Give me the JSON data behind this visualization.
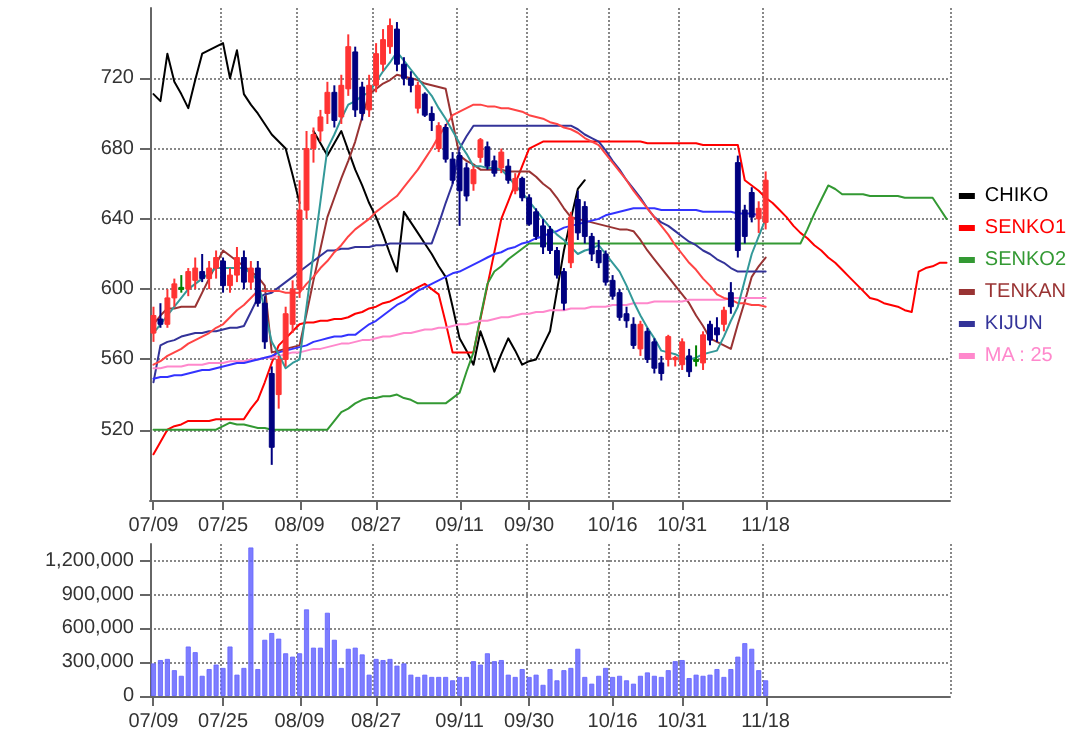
{
  "chart_data": [
    {
      "type": "candlestick",
      "categories": [
        "07/09",
        null,
        null,
        null,
        null,
        null,
        null,
        null,
        null,
        null,
        "07/25",
        null,
        null,
        null,
        null,
        null,
        null,
        null,
        null,
        null,
        null,
        "08/09",
        null,
        null,
        null,
        null,
        null,
        null,
        null,
        null,
        null,
        null,
        "08/27",
        null,
        null,
        null,
        null,
        null,
        null,
        null,
        null,
        null,
        null,
        null,
        "09/11",
        null,
        null,
        null,
        null,
        null,
        null,
        null,
        null,
        null,
        "09/30",
        null,
        null,
        null,
        null,
        null,
        null,
        null,
        null,
        null,
        null,
        null,
        "10/16",
        null,
        null,
        null,
        null,
        null,
        null,
        null,
        null,
        null,
        "10/31",
        null,
        null,
        null,
        null,
        null,
        null,
        null,
        null,
        null,
        null,
        null,
        "11/18",
        null,
        null,
        null,
        null,
        null,
        null,
        null,
        null,
        null,
        null,
        null,
        null,
        null,
        null,
        null,
        null,
        null,
        null,
        null,
        null,
        null,
        null,
        null,
        null,
        null,
        null
      ],
      "ohlc": [
        [
          575,
          590,
          570,
          585
        ],
        [
          583,
          592,
          578,
          580
        ],
        [
          580,
          600,
          578,
          595
        ],
        [
          595,
          606,
          590,
          603
        ],
        [
          601,
          608,
          598,
          601
        ],
        [
          600,
          612,
          596,
          610
        ],
        [
          605,
          618,
          600,
          612
        ],
        [
          610,
          620,
          604,
          606
        ],
        [
          606,
          616,
          600,
          612
        ],
        [
          612,
          622,
          606,
          618
        ],
        [
          616,
          618,
          598,
          602
        ],
        [
          602,
          612,
          598,
          608
        ],
        [
          608,
          624,
          604,
          618
        ],
        [
          618,
          622,
          600,
          604
        ],
        [
          604,
          616,
          600,
          612
        ],
        [
          612,
          616,
          590,
          592
        ],
        [
          592,
          596,
          566,
          570
        ],
        [
          552,
          556,
          500,
          510
        ],
        [
          540,
          562,
          532,
          560
        ],
        [
          560,
          590,
          556,
          586
        ],
        [
          580,
          605,
          575,
          600
        ],
        [
          600,
          662,
          595,
          645
        ],
        [
          645,
          690,
          640,
          680
        ],
        [
          680,
          692,
          672,
          688
        ],
        [
          690,
          702,
          684,
          698
        ],
        [
          700,
          718,
          694,
          712
        ],
        [
          712,
          716,
          692,
          696
        ],
        [
          698,
          722,
          694,
          716
        ],
        [
          714,
          745,
          710,
          738
        ],
        [
          735,
          738,
          698,
          702
        ],
        [
          715,
          718,
          696,
          700
        ],
        [
          702,
          722,
          698,
          716
        ],
        [
          716,
          740,
          712,
          734
        ],
        [
          728,
          748,
          724,
          742
        ],
        [
          738,
          754,
          734,
          750
        ],
        [
          748,
          752,
          724,
          728
        ],
        [
          728,
          732,
          716,
          720
        ],
        [
          720,
          724,
          712,
          716
        ],
        [
          703,
          718,
          700,
          716
        ],
        [
          711,
          712,
          698,
          699
        ],
        [
          700,
          704,
          690,
          696
        ],
        [
          680,
          695,
          678,
          693
        ],
        [
          692,
          694,
          672,
          674
        ],
        [
          674,
          678,
          660,
          662
        ],
        [
          676,
          678,
          636,
          656
        ],
        [
          669,
          672,
          650,
          653
        ],
        [
          660,
          670,
          656,
          668
        ],
        [
          675,
          686,
          672,
          685
        ],
        [
          681,
          684,
          668,
          670
        ],
        [
          673,
          676,
          664,
          666
        ],
        [
          669,
          680,
          666,
          678
        ],
        [
          670,
          674,
          660,
          662
        ],
        [
          656,
          666,
          654,
          663
        ],
        [
          663,
          664,
          650,
          652
        ],
        [
          652,
          654,
          636,
          637
        ],
        [
          644,
          646,
          628,
          630
        ],
        [
          636,
          640,
          620,
          624
        ],
        [
          634,
          636,
          620,
          622
        ],
        [
          622,
          624,
          606,
          608
        ],
        [
          610,
          612,
          588,
          592
        ],
        [
          615,
          644,
          612,
          641
        ],
        [
          651,
          656,
          628,
          632
        ],
        [
          647,
          650,
          626,
          630
        ],
        [
          630,
          632,
          616,
          620
        ],
        [
          622,
          628,
          612,
          615
        ],
        [
          620,
          622,
          602,
          604
        ],
        [
          605,
          608,
          594,
          596
        ],
        [
          598,
          600,
          582,
          584
        ],
        [
          586,
          590,
          578,
          582
        ],
        [
          580,
          584,
          566,
          568
        ],
        [
          566,
          582,
          562,
          580
        ],
        [
          576,
          578,
          558,
          560
        ],
        [
          570,
          572,
          552,
          555
        ],
        [
          558,
          562,
          548,
          552
        ],
        [
          560,
          574,
          556,
          573
        ],
        [
          560,
          562,
          556,
          561
        ],
        [
          557,
          572,
          554,
          570
        ],
        [
          562,
          566,
          550,
          553
        ],
        [
          560,
          568,
          556,
          560
        ],
        [
          558,
          576,
          554,
          574
        ],
        [
          580,
          582,
          568,
          571
        ],
        [
          578,
          584,
          570,
          574
        ],
        [
          580,
          590,
          576,
          588
        ],
        [
          598,
          604,
          586,
          590
        ],
        [
          672,
          676,
          618,
          622
        ],
        [
          645,
          648,
          626,
          630
        ],
        [
          655,
          658,
          638,
          641
        ],
        [
          640,
          650,
          632,
          646
        ],
        [
          638,
          667,
          634,
          662
        ],
        null,
        null,
        null,
        null,
        null,
        null,
        null,
        null,
        null,
        null,
        null,
        null,
        null,
        null,
        null,
        null,
        null,
        null,
        null,
        null,
        null,
        null,
        null,
        null,
        null,
        null
      ],
      "colors": [
        "#ff3333",
        "#000080",
        "#ff3333",
        "#ff3333",
        "#008000",
        "#ff3333",
        "#ff3333",
        "#000080",
        "#ff3333",
        "#ff3333",
        "#000080",
        "#ff3333",
        "#ff3333",
        "#000080",
        "#ff3333",
        "#000080",
        "#000080",
        "#000080",
        "#ff3333",
        "#ff3333",
        "#ff3333",
        "#ff3333",
        "#ff3333",
        "#ff3333",
        "#ff3333",
        "#ff3333",
        "#000080",
        "#ff3333",
        "#ff3333",
        "#000080",
        "#000080",
        "#ff3333",
        "#ff3333",
        "#ff3333",
        "#ff3333",
        "#000080",
        "#000080",
        "#000080",
        "#ff3333",
        "#000080",
        "#000080",
        "#ff3333",
        "#000080",
        "#000080",
        "#000080",
        "#000080",
        "#ff3333",
        "#ff3333",
        "#000080",
        "#000080",
        "#ff3333",
        "#000080",
        "#ff3333",
        "#000080",
        "#000080",
        "#000080",
        "#000080",
        "#000080",
        "#000080",
        "#000080",
        "#ff3333",
        "#000080",
        "#000080",
        "#000080",
        "#000080",
        "#000080",
        "#000080",
        "#000080",
        "#000080",
        "#000080",
        "#ff3333",
        "#000080",
        "#000080",
        "#000080",
        "#ff3333",
        "#ff3333",
        "#ff3333",
        "#000080",
        "#008000",
        "#ff3333",
        "#000080",
        "#000080",
        "#ff3333",
        "#000080",
        "#000080",
        "#000080",
        "#000080",
        "#ff3333",
        "#ff3333",
        null,
        null,
        null,
        null,
        null,
        null,
        null,
        null,
        null,
        null,
        null,
        null,
        null,
        null,
        null,
        null,
        null,
        null,
        null,
        null,
        null,
        null,
        null,
        null,
        null,
        null
      ],
      "series": [
        {
          "type": "line",
          "name": "CHIKO",
          "color": "#000000",
          "values": [
            711,
            707,
            734,
            718,
            711,
            703,
            719,
            734,
            736,
            738,
            740,
            720,
            736,
            711,
            705,
            700,
            694,
            688,
            684,
            680,
            665,
            649,
            null,
            690,
            683,
            676,
            683,
            690,
            679,
            668,
            659,
            649,
            641,
            631,
            620,
            610,
            644,
            638,
            632,
            626,
            620,
            613,
            607,
            590,
            572,
            565,
            557,
            576,
            565,
            553,
            563,
            572,
            565,
            557,
            559,
            560,
            568,
            576,
            599,
            622,
            640,
            657,
            662,
            null,
            null,
            null,
            null,
            null,
            null,
            null,
            null,
            null,
            null,
            null,
            null,
            null,
            null,
            null,
            null,
            null,
            null,
            null,
            null,
            null,
            null,
            null,
            null,
            null,
            null,
            null,
            null,
            null,
            null,
            null,
            null,
            null,
            null,
            null,
            null,
            null,
            null,
            null,
            null,
            null,
            null,
            null,
            null,
            null,
            null,
            null,
            null,
            null,
            null,
            null,
            null
          ]
        },
        {
          "type": "line",
          "name": "SENKO1",
          "color": "#ff0000",
          "values": [
            506,
            513,
            520,
            522,
            523,
            525,
            525,
            525,
            525,
            526,
            526,
            526,
            526,
            526,
            532,
            537,
            547,
            558,
            568,
            572,
            576,
            580,
            581,
            581,
            582,
            582,
            583,
            583,
            584,
            586,
            587,
            589,
            590,
            592,
            593,
            595,
            597,
            599,
            601,
            603,
            600,
            597,
            581,
            564,
            564,
            564,
            564,
            583,
            602,
            621,
            640,
            650,
            660,
            670,
            680,
            682,
            684,
            684,
            684,
            684,
            684,
            684,
            684,
            684,
            684,
            684,
            684,
            684,
            684,
            684,
            684,
            683,
            683,
            683,
            683,
            683,
            683,
            683,
            683,
            682,
            682,
            682,
            682,
            682,
            682,
            662,
            659,
            656,
            652,
            649,
            645,
            641,
            636,
            632,
            629,
            625,
            622,
            618,
            615,
            611,
            607,
            603,
            599,
            595,
            594,
            592,
            591,
            590,
            588,
            587,
            610,
            612,
            613,
            615,
            615
          ]
        },
        {
          "type": "line",
          "name": "SENKO2",
          "color": "#339933",
          "values": [
            520,
            520,
            520,
            520,
            520,
            520,
            520,
            520,
            520,
            520,
            522,
            524,
            523,
            523,
            522,
            521,
            521,
            520,
            520,
            520,
            520,
            520,
            520,
            520,
            520,
            520,
            525,
            530,
            532,
            535,
            537,
            538,
            538,
            539,
            539,
            540,
            538,
            537,
            535,
            535,
            535,
            535,
            535,
            538,
            541,
            553,
            564,
            584,
            603,
            610,
            613,
            617,
            620,
            623,
            626,
            626,
            626,
            626,
            626,
            626,
            626,
            626,
            626,
            626,
            626,
            626,
            626,
            626,
            626,
            626,
            626,
            626,
            626,
            626,
            626,
            626,
            626,
            626,
            626,
            626,
            626,
            626,
            626,
            626,
            626,
            626,
            626,
            626,
            626,
            626,
            626,
            626,
            626,
            626,
            634,
            643,
            651,
            659,
            657,
            654,
            654,
            654,
            654,
            653,
            653,
            653,
            653,
            653,
            652,
            652,
            652,
            652,
            652,
            646,
            640
          ]
        },
        {
          "type": "line",
          "name": "TENKAN",
          "color": "#993333",
          "values": [
            580,
            585,
            589,
            589,
            590,
            590,
            590,
            598,
            606,
            614,
            622,
            619,
            616,
            613,
            610,
            607,
            602,
            564,
            565,
            566,
            567,
            568,
            586,
            605,
            623,
            641,
            652,
            663,
            673,
            684,
            698,
            711,
            714,
            717,
            719,
            722,
            721,
            720,
            719,
            717,
            716,
            715,
            714,
            695,
            676,
            673,
            671,
            668,
            668,
            668,
            668,
            667,
            667,
            667,
            667,
            664,
            660,
            657,
            652,
            646,
            641,
            640,
            639,
            638,
            637,
            636,
            635,
            634,
            634,
            633,
            628,
            622,
            617,
            612,
            607,
            602,
            597,
            592,
            585,
            579,
            572,
            570,
            568,
            566,
            580,
            593,
            607,
            613,
            618,
            null,
            null,
            null,
            null,
            null,
            null,
            null,
            null,
            null,
            null,
            null,
            null,
            null,
            null,
            null,
            null,
            null,
            null,
            null,
            null,
            null,
            null,
            null,
            null,
            null,
            null
          ]
        },
        {
          "type": "line",
          "name": "KIJUN",
          "color": "#333399",
          "values": [
            547,
            568,
            570,
            571,
            573,
            574,
            575,
            575,
            576,
            576,
            577,
            578,
            578,
            579,
            587,
            595,
            597,
            598,
            601,
            604,
            607,
            610,
            613,
            616,
            619,
            622,
            622,
            623,
            623,
            624,
            624,
            624,
            625,
            625,
            626,
            626,
            626,
            626,
            626,
            626,
            626,
            637,
            649,
            660,
            680,
            687,
            693,
            693,
            693,
            693,
            693,
            693,
            693,
            693,
            693,
            693,
            693,
            693,
            693,
            693,
            693,
            691,
            688,
            686,
            684,
            679,
            673,
            668,
            662,
            657,
            652,
            646,
            641,
            638,
            636,
            633,
            630,
            627,
            625,
            622,
            620,
            617,
            615,
            612,
            610,
            610,
            610,
            610,
            610,
            null,
            null,
            null,
            null,
            null,
            null,
            null,
            null,
            null,
            null,
            null,
            null,
            null,
            null,
            null,
            null,
            null,
            null,
            null,
            null,
            null,
            null,
            null,
            null,
            null,
            null
          ]
        },
        {
          "type": "line",
          "name": "MA : 25",
          "color": "#ff88cc",
          "values": [
            555,
            555,
            556,
            556,
            556,
            557,
            557,
            557,
            558,
            558,
            558,
            559,
            559,
            559,
            560,
            560,
            561,
            561,
            562,
            563,
            564,
            564,
            565,
            566,
            566,
            567,
            568,
            569,
            569,
            570,
            571,
            571,
            572,
            573,
            573,
            574,
            575,
            575,
            576,
            577,
            577,
            578,
            578,
            579,
            580,
            580,
            581,
            582,
            582,
            583,
            584,
            584,
            585,
            586,
            586,
            587,
            587,
            588,
            588,
            588,
            589,
            589,
            589,
            590,
            590,
            590,
            591,
            591,
            591,
            592,
            592,
            592,
            593,
            593,
            593,
            593,
            593,
            594,
            594,
            594,
            594,
            594,
            594,
            595,
            595,
            595,
            595,
            595,
            595,
            null,
            null,
            null,
            null,
            null,
            null,
            null,
            null,
            null,
            null,
            null,
            null,
            null,
            null,
            null,
            null,
            null,
            null,
            null,
            null,
            null,
            null,
            null,
            null,
            null,
            null
          ]
        },
        {
          "type": "line",
          "color": "#3333ff",
          "values": [
            549,
            550,
            550,
            551,
            551,
            552,
            553,
            554,
            554,
            555,
            556,
            557,
            558,
            558,
            559,
            560,
            561,
            562,
            564,
            565,
            566,
            567,
            568,
            570,
            571,
            572,
            573,
            573,
            574,
            574,
            577,
            580,
            582,
            585,
            588,
            591,
            593,
            596,
            599,
            601,
            603,
            605,
            607,
            609,
            610,
            612,
            614,
            616,
            618,
            620,
            621,
            623,
            624,
            626,
            627,
            629,
            630,
            632,
            633,
            635,
            636,
            637,
            638,
            639,
            640,
            642,
            643,
            644,
            645,
            646,
            646,
            646,
            646,
            645,
            645,
            645,
            645,
            645,
            645,
            644,
            644,
            644,
            644,
            644,
            643,
            643,
            643,
            642,
            null,
            null,
            null,
            null,
            null,
            null,
            null,
            null,
            null,
            null,
            null,
            null,
            null,
            null,
            null,
            null,
            null,
            null,
            null,
            null,
            null,
            null,
            null,
            null,
            null,
            null,
            null
          ]
        },
        {
          "type": "line",
          "color": "#ff4444",
          "values": [
            557,
            559,
            562,
            564,
            566,
            569,
            571,
            573,
            575,
            578,
            580,
            584,
            588,
            591,
            595,
            599,
            599,
            599,
            599,
            598,
            598,
            598,
            603,
            607,
            612,
            616,
            621,
            625,
            630,
            634,
            637,
            640,
            644,
            647,
            650,
            653,
            658,
            663,
            668,
            674,
            680,
            687,
            693,
            699,
            701,
            703,
            705,
            705,
            704,
            704,
            703,
            703,
            702,
            701,
            699,
            698,
            697,
            695,
            694,
            692,
            691,
            689,
            686,
            684,
            682,
            677,
            672,
            667,
            662,
            656,
            651,
            646,
            641,
            636,
            631,
            625,
            620,
            615,
            611,
            606,
            602,
            597,
            595,
            594,
            592,
            592,
            591,
            591,
            590,
            null,
            null,
            null,
            null,
            null,
            null,
            null,
            null,
            null,
            null,
            null,
            null,
            null,
            null,
            null,
            null,
            null,
            null,
            null,
            null,
            null,
            null,
            null,
            null,
            null,
            null
          ]
        },
        {
          "type": "line",
          "color": "#339999",
          "values": [
            575,
            580,
            585,
            590,
            595,
            600,
            603,
            606,
            609,
            612,
            612,
            612,
            612,
            612,
            609,
            605,
            588,
            570,
            563,
            555,
            558,
            560,
            590,
            620,
            650,
            680,
            688,
            697,
            705,
            707,
            710,
            712,
            718,
            724,
            729,
            735,
            730,
            725,
            720,
            715,
            710,
            703,
            697,
            690,
            683,
            677,
            670,
            670,
            669,
            669,
            668,
            664,
            659,
            655,
            650,
            645,
            640,
            635,
            631,
            628,
            624,
            620,
            622,
            623,
            625,
            620,
            615,
            610,
            602,
            593,
            585,
            578,
            572,
            565,
            564,
            563,
            561,
            560,
            561,
            563,
            564,
            565,
            573,
            582,
            590,
            605,
            620,
            630,
            640,
            null,
            null,
            null,
            null,
            null,
            null,
            null,
            null,
            null,
            null,
            null,
            null,
            null,
            null,
            null,
            null,
            null,
            null,
            null,
            null,
            null,
            null,
            null,
            null,
            null,
            null
          ]
        }
      ],
      "ylim": [
        480,
        760
      ],
      "yticks": [
        520,
        560,
        600,
        640,
        680,
        720
      ],
      "grid": true,
      "legend": "right"
    },
    {
      "type": "bar",
      "categories": [
        "07/09",
        null,
        null,
        null,
        null,
        null,
        null,
        null,
        null,
        null,
        "07/25",
        null,
        null,
        null,
        null,
        null,
        null,
        null,
        null,
        null,
        null,
        "08/09",
        null,
        null,
        null,
        null,
        null,
        null,
        null,
        null,
        null,
        null,
        "08/27",
        null,
        null,
        null,
        null,
        null,
        null,
        null,
        null,
        null,
        null,
        null,
        "09/11",
        null,
        null,
        null,
        null,
        null,
        null,
        null,
        null,
        null,
        "09/30",
        null,
        null,
        null,
        null,
        null,
        null,
        null,
        null,
        null,
        null,
        null,
        "10/16",
        null,
        null,
        null,
        null,
        null,
        null,
        null,
        null,
        null,
        "10/31",
        null,
        null,
        null,
        null,
        null,
        null,
        null,
        null,
        null,
        null,
        null,
        "11/18",
        null,
        null,
        null,
        null,
        null,
        null,
        null,
        null,
        null,
        null,
        null,
        null,
        null,
        null,
        null,
        null,
        null,
        null,
        null,
        null,
        null,
        null,
        null,
        null,
        null,
        null
      ],
      "values": [
        290000,
        320000,
        330000,
        230000,
        180000,
        440000,
        390000,
        180000,
        240000,
        280000,
        250000,
        440000,
        190000,
        250000,
        1320000,
        240000,
        500000,
        560000,
        510000,
        380000,
        350000,
        380000,
        770000,
        430000,
        430000,
        740000,
        500000,
        250000,
        420000,
        430000,
        370000,
        190000,
        330000,
        320000,
        330000,
        270000,
        290000,
        190000,
        170000,
        190000,
        170000,
        170000,
        170000,
        140000,
        170000,
        170000,
        310000,
        280000,
        380000,
        310000,
        320000,
        190000,
        170000,
        240000,
        170000,
        190000,
        100000,
        240000,
        140000,
        230000,
        250000,
        420000,
        170000,
        110000,
        180000,
        250000,
        170000,
        180000,
        140000,
        110000,
        180000,
        210000,
        180000,
        170000,
        230000,
        310000,
        320000,
        160000,
        190000,
        180000,
        190000,
        240000,
        170000,
        240000,
        350000,
        470000,
        420000,
        230000,
        140000,
        null,
        null,
        null,
        null,
        null,
        null,
        null,
        null,
        null,
        null,
        null,
        null,
        null,
        null,
        null,
        null,
        null,
        null,
        null,
        null,
        null,
        null,
        null,
        null,
        null,
        null
      ],
      "color": "#6666ff",
      "ylim": [
        0,
        1350000
      ],
      "yticks": [
        0,
        {
          "value": 300000,
          "label": "300,000"
        },
        {
          "value": 600000,
          "label": "600,000"
        },
        {
          "value": 900000,
          "label": "900,000"
        },
        {
          "value": 1200000,
          "label": "1,200,000"
        }
      ],
      "grid": true
    }
  ]
}
